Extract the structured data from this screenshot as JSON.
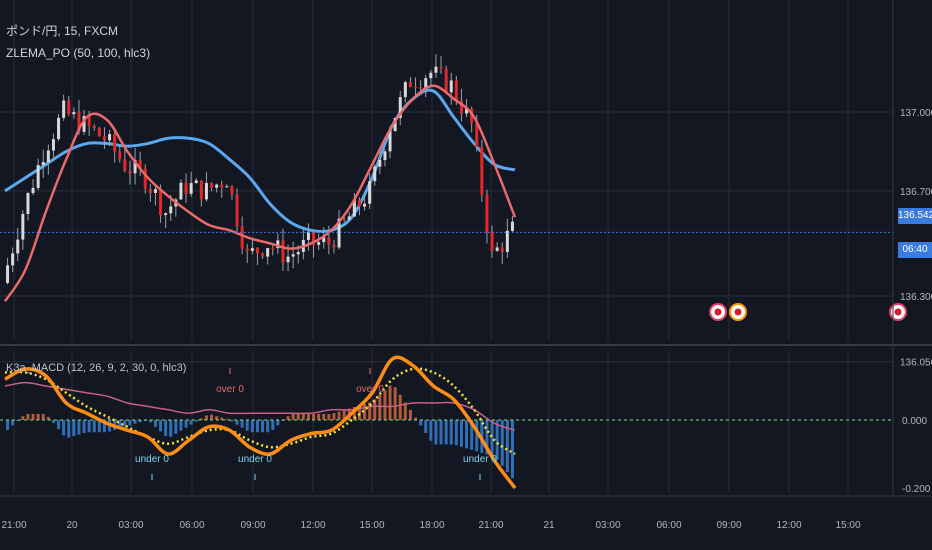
{
  "header": {
    "symbol_line": "ポンド/円, 15, FXCM",
    "indicator_line": "ZLEMA_PO (50, 100, hlc3)",
    "macd_line": "K3a_MACD (12, 26, 9, 2, 30, 0, hlc3)"
  },
  "price_axis": {
    "ticks": [
      {
        "label": "137.000",
        "value": 137.0
      },
      {
        "label": "136.700",
        "value": 136.7
      },
      {
        "label": "136.300",
        "value": 136.3
      },
      {
        "label": "136.050",
        "value": 136.05
      }
    ],
    "last_price_label": "136.542",
    "countdown_label": "06:40"
  },
  "macd_axis": {
    "ticks": [
      {
        "label": "0.000",
        "value": 0.0
      },
      {
        "label": "-0.200",
        "value": -0.2
      }
    ]
  },
  "time_axis": {
    "labels": [
      "21:00",
      "20",
      "03:00",
      "06:00",
      "09:00",
      "12:00",
      "15:00",
      "18:00",
      "21:00",
      "21",
      "03:00",
      "06:00",
      "09:00",
      "12:00",
      "15:00"
    ],
    "positions": [
      14,
      72,
      131,
      192,
      253,
      313,
      372,
      432,
      491,
      549,
      608,
      669,
      729,
      789,
      848
    ]
  },
  "annotations": [
    {
      "text": "over 0",
      "kind": "over",
      "x": 230
    },
    {
      "text": "over 0",
      "kind": "over",
      "x": 370
    },
    {
      "text": "under 0",
      "kind": "under",
      "x": 152
    },
    {
      "text": "under 0",
      "kind": "under",
      "x": 255
    },
    {
      "text": "under 0",
      "kind": "under",
      "x": 480
    }
  ],
  "colors": {
    "background": "#131722",
    "grid": "#2a2e39",
    "candle_up": "#d9d9d9",
    "candle_down": "#e02a2a",
    "ema_fast": "#e86a6a",
    "ema_slow": "#5aa8f0",
    "price_line": "#3a7be0",
    "macd_line": "#ff8c14",
    "signal_line": "#f5e52a",
    "slow_line": "#c8608a",
    "hist_pos": "#b25a3a",
    "hist_neg": "#2f6fb8",
    "zero_line": "#7ddc7d",
    "over_text": "#e06a6a",
    "under_text": "#7fd4f0"
  },
  "event_icons": [
    "flag-uk-icon",
    "flag-japan-icon",
    "flag-japan-icon",
    "flag-uk-icon"
  ],
  "chart_data": {
    "type": "line",
    "title": "ポンド/円, 15, FXCM",
    "xlabel": "",
    "ylabel": "",
    "price_range": [
      136.0,
      137.25
    ],
    "price_series_x": [
      "21:00",
      "22:00",
      "23:00",
      "00:00",
      "01:00",
      "02:00",
      "03:00",
      "04:00",
      "05:00",
      "06:00",
      "07:00",
      "08:00",
      "09:00",
      "10:00",
      "11:00",
      "12:00",
      "13:00",
      "14:00",
      "15:00",
      "16:00",
      "17:00",
      "18:00",
      "19:00",
      "20:00",
      "21:00",
      "22:00"
    ],
    "close": [
      136.35,
      136.62,
      136.85,
      137.0,
      136.95,
      136.9,
      136.8,
      136.75,
      136.62,
      136.72,
      136.7,
      136.75,
      136.45,
      136.5,
      136.45,
      136.5,
      136.5,
      136.6,
      136.7,
      136.95,
      137.12,
      137.15,
      137.1,
      136.95,
      136.45,
      136.55
    ],
    "series": [
      {
        "name": "ZLEMA 50",
        "values": [
          136.28,
          136.4,
          136.62,
          136.82,
          136.98,
          136.97,
          136.85,
          136.75,
          136.68,
          136.62,
          136.57,
          136.55,
          136.52,
          136.5,
          136.48,
          136.5,
          136.55,
          136.65,
          136.8,
          136.95,
          137.05,
          137.1,
          137.05,
          136.98,
          136.8,
          136.6
        ]
      },
      {
        "name": "ZLEMA 100",
        "values": [
          136.7,
          136.75,
          136.8,
          136.85,
          136.88,
          136.88,
          136.87,
          136.88,
          136.9,
          136.9,
          136.88,
          136.82,
          136.75,
          136.65,
          136.58,
          136.55,
          136.55,
          136.6,
          136.75,
          136.95,
          137.05,
          137.08,
          136.98,
          136.88,
          136.8,
          136.78
        ]
      }
    ],
    "macd_range": [
      -0.25,
      0.25
    ],
    "macd": [
      0.12,
      0.15,
      0.13,
      0.05,
      0.02,
      -0.01,
      -0.03,
      -0.05,
      -0.1,
      -0.06,
      -0.02,
      -0.03,
      -0.08,
      -0.1,
      -0.06,
      -0.04,
      -0.03,
      0.02,
      0.08,
      0.18,
      0.16,
      0.1,
      0.06,
      -0.02,
      -0.12,
      -0.2
    ],
    "signal": [
      0.14,
      0.14,
      0.12,
      0.08,
      0.04,
      0.01,
      -0.02,
      -0.05,
      -0.07,
      -0.05,
      -0.03,
      -0.03,
      -0.06,
      -0.08,
      -0.07,
      -0.05,
      -0.04,
      0.0,
      0.05,
      0.12,
      0.15,
      0.14,
      0.1,
      0.03,
      -0.06,
      -0.1
    ],
    "slow": [
      0.1,
      0.11,
      0.1,
      0.09,
      0.08,
      0.07,
      0.05,
      0.04,
      0.03,
      0.02,
      0.03,
      0.02,
      0.02,
      0.02,
      0.02,
      0.02,
      0.03,
      0.03,
      0.04,
      0.04,
      0.05,
      0.05,
      0.05,
      0.03,
      -0.01,
      -0.03
    ],
    "grid": true
  }
}
